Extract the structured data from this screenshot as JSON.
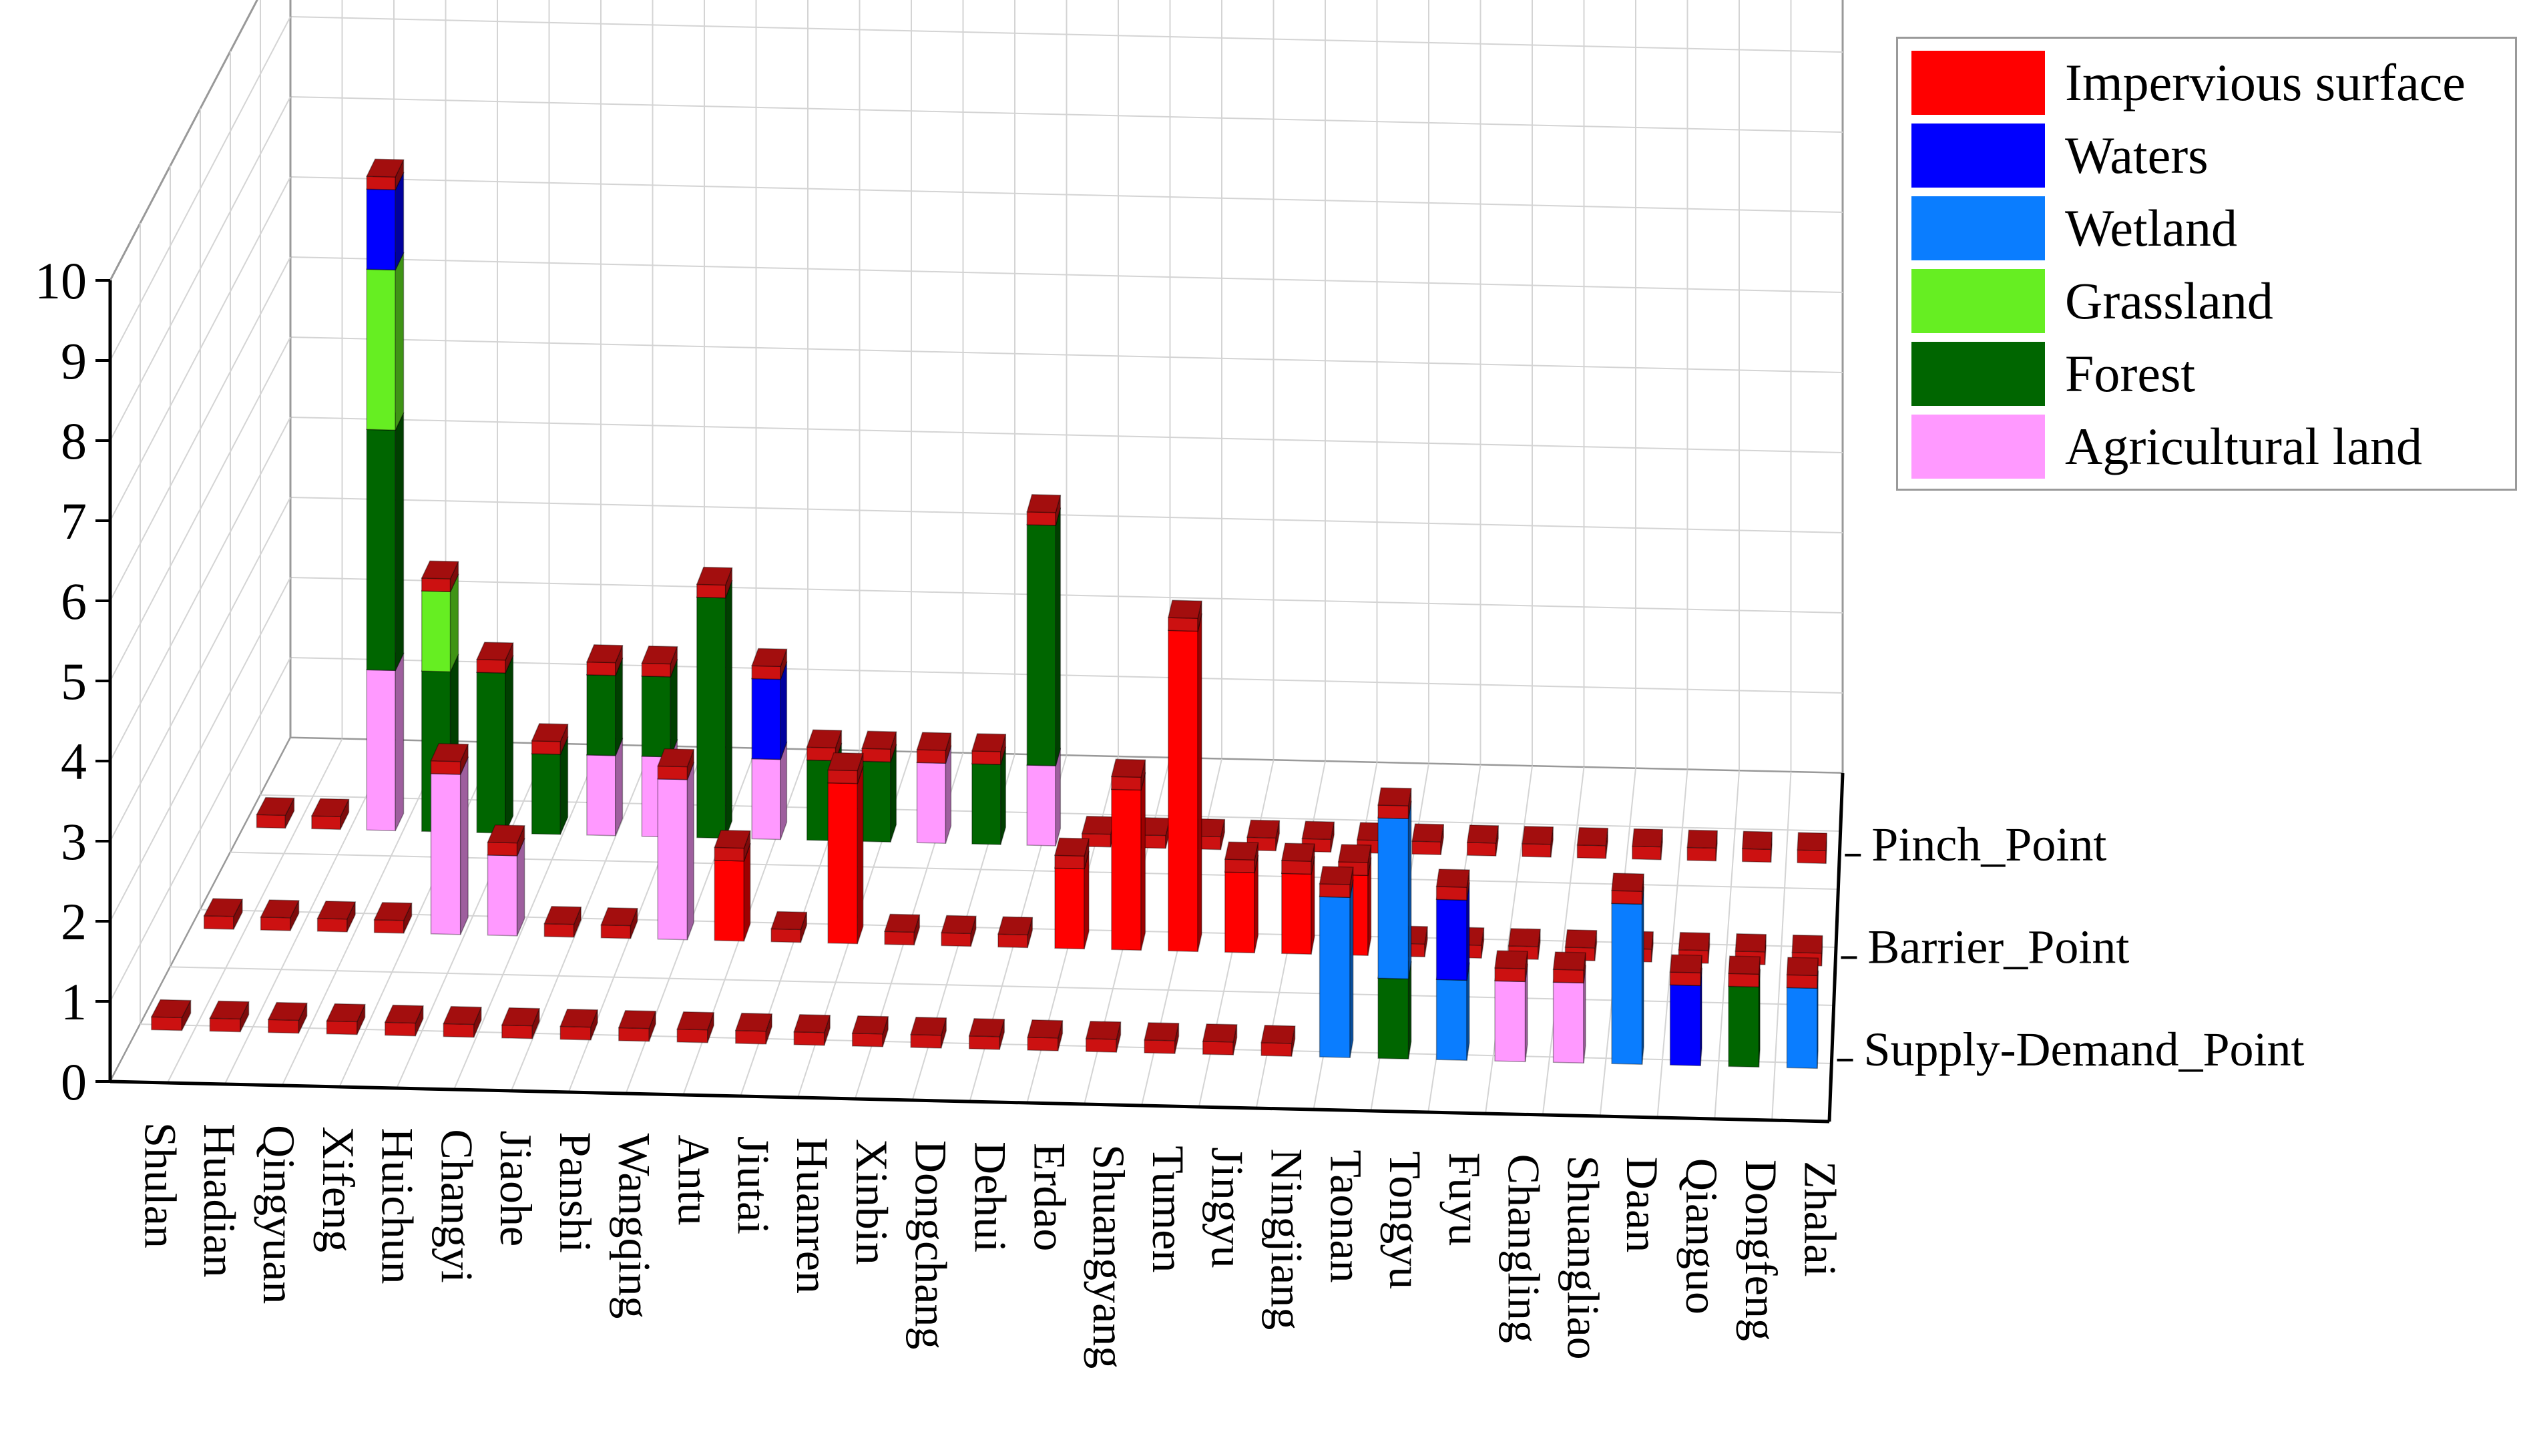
{
  "chart_data": {
    "type": "bar",
    "subtype": "3d-stacked-bar",
    "title": "",
    "xlabel": "",
    "ylabel": "",
    "ylim": [
      0,
      10
    ],
    "y_ticks": [
      "0",
      "1",
      "2",
      "3",
      "4",
      "5",
      "6",
      "7",
      "8",
      "9",
      "10"
    ],
    "rows": [
      "Supply-Demand_Point",
      "Barrier_Point",
      "Pinch_Point"
    ],
    "categories": [
      "Shulan",
      "Huadian",
      "Qingyuan",
      "Xifeng",
      "Huichun",
      "Changyi",
      "Jiaohe",
      "Panshi",
      "Wangqing",
      "Antu",
      "Jiutai",
      "Huanren",
      "Xinbin",
      "Dongchang",
      "Dehui",
      "Erdao",
      "Shuangyang",
      "Tumen",
      "Jingyu",
      "Ningjiang",
      "Taonan",
      "Tongyu",
      "Fuyu",
      "Changling",
      "Shuangliao",
      "Daan",
      "Qianguo",
      "Dongfeng",
      "Zhalai"
    ],
    "legend": [
      {
        "name": "Impervious surface",
        "color": "#ff0000"
      },
      {
        "name": "Waters",
        "color": "#0000ff"
      },
      {
        "name": "Wetland",
        "color": "#0a7dff"
      },
      {
        "name": "Grassland",
        "color": "#66ee22"
      },
      {
        "name": "Forest",
        "color": "#006600"
      },
      {
        "name": "Agricultural land",
        "color": "#ff99ff"
      }
    ],
    "series": [
      {
        "name": "Impervious surface",
        "Supply-Demand_Point": [
          0,
          0,
          0,
          0,
          0,
          0,
          0,
          0,
          0,
          0,
          0,
          0,
          0,
          0,
          0,
          0,
          0,
          0,
          0,
          0,
          0,
          0,
          0,
          0,
          0,
          0,
          0,
          0,
          0
        ],
        "Barrier_Point": [
          0,
          0,
          0,
          0,
          0,
          0,
          0,
          0,
          0,
          1,
          0,
          2,
          0,
          0,
          0,
          1,
          2,
          4,
          1,
          1,
          1,
          0,
          0,
          0,
          0,
          0,
          0,
          0,
          0
        ],
        "Pinch_Point": [
          0,
          0,
          0,
          0,
          0,
          0,
          0,
          0,
          0,
          0,
          0,
          0,
          0,
          0,
          0,
          0,
          0,
          0,
          0,
          0,
          0,
          0,
          0,
          0,
          0,
          0,
          0,
          0,
          0
        ]
      },
      {
        "name": "Waters",
        "Supply-Demand_Point": [
          0,
          0,
          0,
          0,
          0,
          0,
          0,
          0,
          0,
          0,
          0,
          0,
          0,
          0,
          0,
          0,
          0,
          0,
          0,
          0,
          0,
          0,
          1,
          0,
          0,
          0,
          1,
          0,
          0
        ],
        "Barrier_Point": [
          0,
          0,
          0,
          0,
          0,
          0,
          0,
          0,
          0,
          0,
          0,
          0,
          0,
          0,
          0,
          0,
          0,
          0,
          0,
          0,
          0,
          0,
          0,
          0,
          0,
          0,
          0,
          0,
          0
        ],
        "Pinch_Point": [
          0,
          0,
          1,
          0,
          0,
          0,
          0,
          0,
          0,
          1,
          0,
          0,
          0,
          0,
          0,
          0,
          0,
          0,
          0,
          0,
          0,
          0,
          0,
          0,
          0,
          0,
          0,
          0,
          0
        ]
      },
      {
        "name": "Wetland",
        "Supply-Demand_Point": [
          0,
          0,
          0,
          0,
          0,
          0,
          0,
          0,
          0,
          0,
          0,
          0,
          0,
          0,
          0,
          0,
          0,
          0,
          0,
          0,
          2,
          2,
          1,
          0,
          0,
          2,
          0,
          0,
          1
        ],
        "Barrier_Point": [
          0,
          0,
          0,
          0,
          0,
          0,
          0,
          0,
          0,
          0,
          0,
          0,
          0,
          0,
          0,
          0,
          0,
          0,
          0,
          0,
          0,
          0,
          0,
          0,
          0,
          0,
          0,
          0,
          0
        ],
        "Pinch_Point": [
          0,
          0,
          0,
          0,
          0,
          0,
          0,
          0,
          0,
          0,
          0,
          0,
          0,
          0,
          0,
          0,
          0,
          0,
          0,
          0,
          0,
          0,
          0,
          0,
          0,
          0,
          0,
          0,
          0
        ]
      },
      {
        "name": "Grassland",
        "Supply-Demand_Point": [
          0,
          0,
          0,
          0,
          0,
          0,
          0,
          0,
          0,
          0,
          0,
          0,
          0,
          0,
          0,
          0,
          0,
          0,
          0,
          0,
          0,
          0,
          0,
          0,
          0,
          0,
          0,
          0,
          0
        ],
        "Barrier_Point": [
          0,
          0,
          0,
          0,
          0,
          0,
          0,
          0,
          0,
          0,
          0,
          0,
          0,
          0,
          0,
          0,
          0,
          0,
          0,
          0,
          0,
          0,
          0,
          0,
          0,
          0,
          0,
          0,
          0
        ],
        "Pinch_Point": [
          0,
          0,
          2,
          1,
          0,
          0,
          0,
          0,
          0,
          0,
          0,
          0,
          0,
          0,
          0,
          0,
          0,
          0,
          0,
          0,
          0,
          0,
          0,
          0,
          0,
          0,
          0,
          0,
          0
        ]
      },
      {
        "name": "Forest",
        "Supply-Demand_Point": [
          0,
          0,
          0,
          0,
          0,
          0,
          0,
          0,
          0,
          0,
          0,
          0,
          0,
          0,
          0,
          0,
          0,
          0,
          0,
          0,
          0,
          1,
          0,
          0,
          0,
          0,
          0,
          1,
          0
        ],
        "Barrier_Point": [
          0,
          0,
          0,
          0,
          0,
          0,
          0,
          0,
          0,
          0,
          0,
          0,
          0,
          0,
          0,
          0,
          0,
          0,
          0,
          0,
          0,
          0,
          0,
          0,
          0,
          0,
          0,
          0,
          0
        ],
        "Pinch_Point": [
          0,
          0,
          3,
          2,
          2,
          1,
          1,
          1,
          3,
          0,
          1,
          1,
          0,
          1,
          3,
          0,
          0,
          0,
          0,
          0,
          0,
          0,
          0,
          0,
          0,
          0,
          0,
          0,
          0
        ]
      },
      {
        "name": "Agricultural land",
        "Supply-Demand_Point": [
          0,
          0,
          0,
          0,
          0,
          0,
          0,
          0,
          0,
          0,
          0,
          0,
          0,
          0,
          0,
          0,
          0,
          0,
          0,
          0,
          0,
          0,
          0,
          1,
          1,
          0,
          0,
          0,
          0
        ],
        "Barrier_Point": [
          0,
          0,
          0,
          0,
          2,
          1,
          0,
          0,
          2,
          0,
          0,
          0,
          0,
          0,
          0,
          0,
          0,
          0,
          0,
          0,
          0,
          0,
          0,
          0,
          0,
          0,
          0,
          0,
          0
        ],
        "Pinch_Point": [
          0,
          0,
          2,
          0,
          0,
          0,
          1,
          1,
          0,
          1,
          0,
          0,
          1,
          0,
          1,
          0,
          0,
          0,
          0,
          0,
          0,
          0,
          0,
          0,
          0,
          0,
          0,
          0,
          0
        ]
      }
    ]
  }
}
